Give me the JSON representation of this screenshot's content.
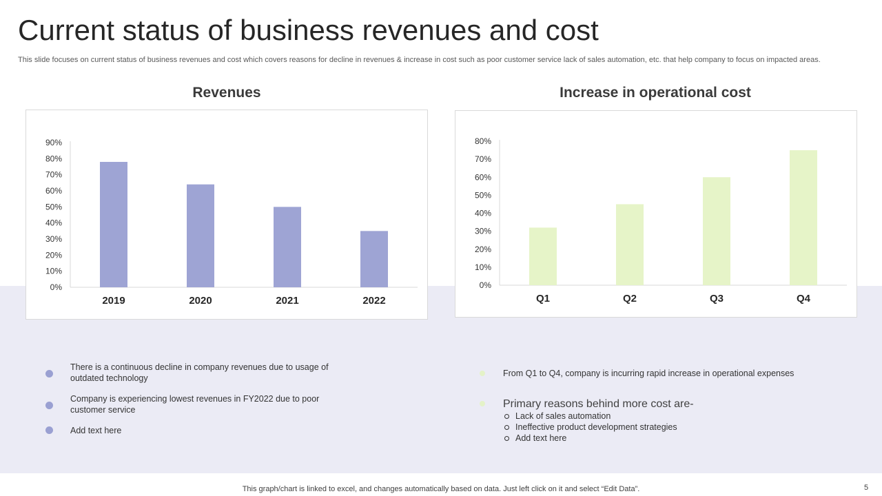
{
  "title": "Current status of business revenues and cost",
  "subtitle": "This slide focuses on current status of business revenues and cost which covers reasons for decline in revenues & increase in cost such as poor customer service lack of sales automation, etc. that help company to focus on impacted areas.",
  "colors": {
    "revenue_bar": "#9ea4d4",
    "cost_bar": "#e6f4c8",
    "band": "#ebebf5",
    "axis": "#d9d9d9"
  },
  "chart_data": [
    {
      "type": "bar",
      "title": "Revenues",
      "categories": [
        "2019",
        "2020",
        "2021",
        "2022"
      ],
      "values": [
        78,
        64,
        50,
        35
      ],
      "yticks": [
        "0%",
        "10%",
        "20%",
        "30%",
        "40%",
        "50%",
        "60%",
        "70%",
        "80%",
        "90%"
      ],
      "ylim": [
        0,
        90
      ],
      "xlabel": "",
      "ylabel": ""
    },
    {
      "type": "bar",
      "title": "Increase in operational cost",
      "categories": [
        "Q1",
        "Q2",
        "Q3",
        "Q4"
      ],
      "values": [
        32,
        45,
        60,
        75
      ],
      "yticks": [
        "0%",
        "10%",
        "20%",
        "30%",
        "40%",
        "50%",
        "60%",
        "70%",
        "80%"
      ],
      "ylim": [
        0,
        80
      ],
      "xlabel": "",
      "ylabel": ""
    }
  ],
  "left_bullets": [
    "There is a continuous decline in company revenues  due to usage of outdated technology",
    "Company is experiencing lowest revenues  in FY2022 due to poor customer service",
    "Add text here"
  ],
  "right_bullets": {
    "first": "From Q1 to Q4, company is incurring rapid increase in operational  expenses",
    "second": "Primary reasons behind more cost are-",
    "sub_items": [
      "Lack of sales automation",
      "Ineffective  product  development  strategies",
      "Add text here"
    ]
  },
  "footer": "This graph/chart is linked to excel,  and changes automatically based on data. Just left click on it and select “Edit Data”.",
  "page_number": "5"
}
